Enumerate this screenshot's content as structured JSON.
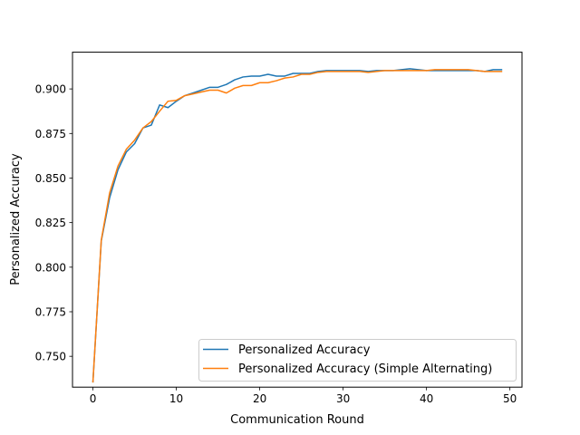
{
  "chart_data": {
    "type": "line",
    "title": "",
    "xlabel": "Communication Round",
    "ylabel": "Personalized Accuracy",
    "xlim": [
      -2.45,
      51.45
    ],
    "ylim": [
      0.7327,
      0.9206
    ],
    "xticks": [
      0,
      10,
      20,
      30,
      40,
      50
    ],
    "yticks": [
      0.75,
      0.775,
      0.8,
      0.825,
      0.85,
      0.875,
      0.9
    ],
    "ytick_labels": [
      "0.750",
      "0.775",
      "0.800",
      "0.825",
      "0.850",
      "0.875",
      "0.900"
    ],
    "grid": false,
    "legend": "lower-right",
    "x": [
      0,
      1,
      2,
      3,
      4,
      5,
      6,
      7,
      8,
      9,
      10,
      11,
      12,
      13,
      14,
      15,
      16,
      17,
      18,
      19,
      20,
      21,
      22,
      23,
      24,
      25,
      26,
      27,
      28,
      29,
      30,
      31,
      32,
      33,
      34,
      35,
      36,
      37,
      38,
      39,
      40,
      41,
      42,
      43,
      44,
      45,
      46,
      47,
      48,
      49
    ],
    "series": [
      {
        "name": "Personalized Accuracy",
        "color": "#1f77b4",
        "values": [
          0.7357,
          0.8147,
          0.8389,
          0.8546,
          0.8646,
          0.8693,
          0.8781,
          0.8797,
          0.891,
          0.8895,
          0.8931,
          0.8962,
          0.8977,
          0.8993,
          0.9009,
          0.9009,
          0.9025,
          0.9051,
          0.9067,
          0.9072,
          0.9072,
          0.9082,
          0.9072,
          0.9072,
          0.9087,
          0.9087,
          0.9087,
          0.9098,
          0.9103,
          0.9103,
          0.9103,
          0.9103,
          0.9103,
          0.9098,
          0.9103,
          0.9103,
          0.9103,
          0.9108,
          0.9113,
          0.9108,
          0.9103,
          0.9103,
          0.9103,
          0.9103,
          0.9103,
          0.9103,
          0.9103,
          0.9098,
          0.9108,
          0.9108
        ]
      },
      {
        "name": "Personalized Accuracy (Simple Alternating)",
        "color": "#ff7f0e",
        "values": [
          0.7357,
          0.8152,
          0.8416,
          0.8567,
          0.8661,
          0.8713,
          0.8781,
          0.8817,
          0.8875,
          0.8931,
          0.8936,
          0.8962,
          0.8972,
          0.8983,
          0.8993,
          0.8993,
          0.8977,
          0.9004,
          0.9019,
          0.9019,
          0.9035,
          0.9035,
          0.9046,
          0.9061,
          0.9067,
          0.9082,
          0.9082,
          0.9093,
          0.9098,
          0.9098,
          0.9098,
          0.9098,
          0.9098,
          0.9093,
          0.9098,
          0.9103,
          0.9103,
          0.9103,
          0.9103,
          0.9103,
          0.9103,
          0.9108,
          0.9108,
          0.9108,
          0.9108,
          0.9108,
          0.9103,
          0.9098,
          0.9098,
          0.9098
        ]
      }
    ]
  }
}
